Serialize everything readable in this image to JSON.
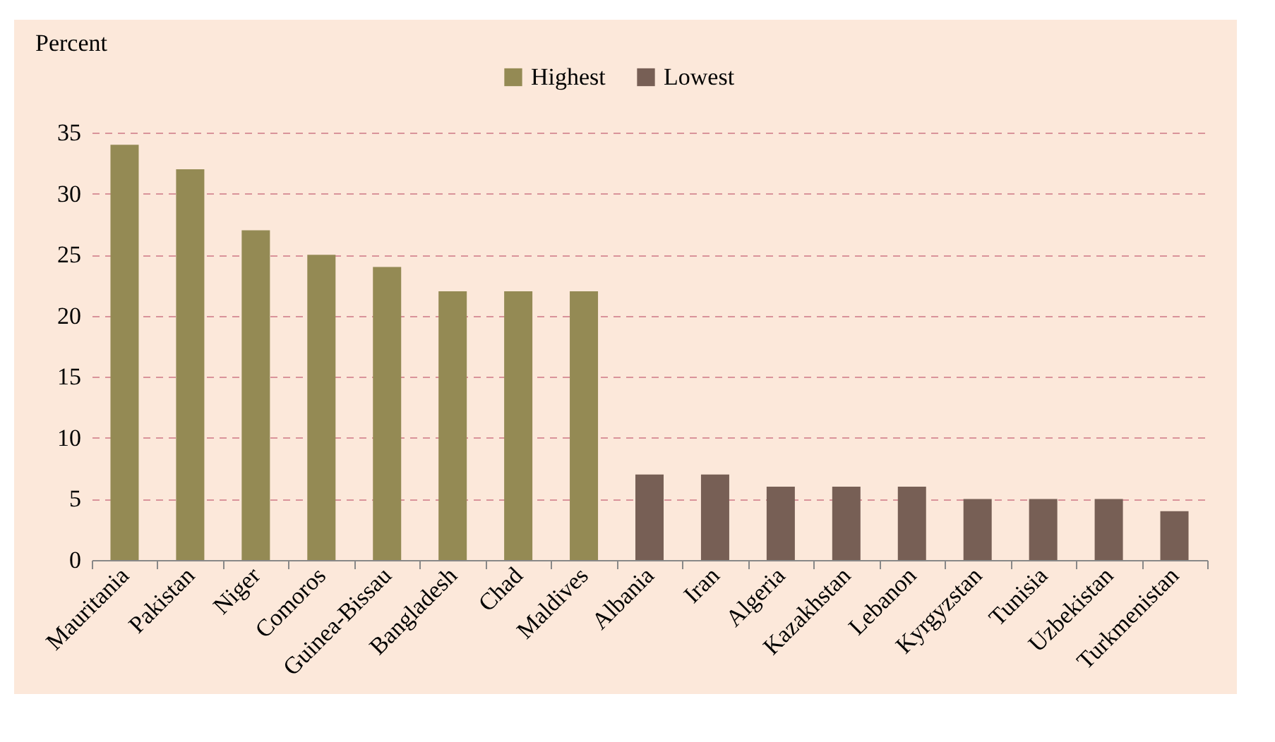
{
  "chart_data": {
    "type": "bar",
    "ylabel": "Percent",
    "categories": [
      "Mauritania",
      "Pakistan",
      "Niger",
      "Comoros",
      "Guinea-Bissau",
      "Bangladesh",
      "Chad",
      "Maldives",
      "Albania",
      "Iran",
      "Algeria",
      "Kazakhstan",
      "Lebanon",
      "Kyrgyzstan",
      "Tunisia",
      "Uzbekistan",
      "Turkmenistan"
    ],
    "series": [
      {
        "name": "Highest",
        "color": "#948a54",
        "values": [
          34,
          32,
          27,
          25,
          24,
          22,
          22,
          22,
          null,
          null,
          null,
          null,
          null,
          null,
          null,
          null,
          null
        ]
      },
      {
        "name": "Lowest",
        "color": "#775f55",
        "values": [
          null,
          null,
          null,
          null,
          null,
          null,
          null,
          null,
          7,
          7,
          6,
          6,
          6,
          5,
          5,
          5,
          4
        ]
      }
    ],
    "ylim": [
      0,
      35
    ],
    "yticks": [
      0,
      5,
      10,
      15,
      20,
      25,
      30,
      35
    ],
    "grid": "y",
    "legend": "top"
  }
}
